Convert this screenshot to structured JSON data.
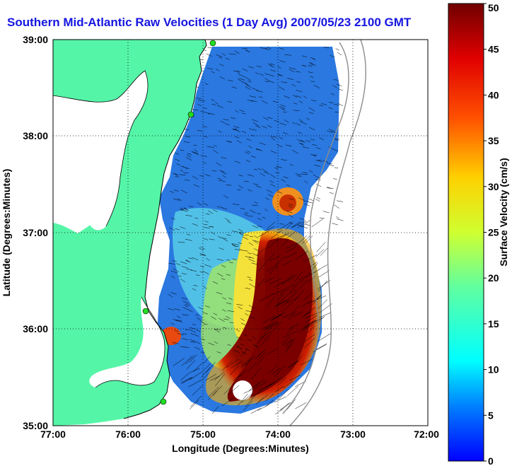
{
  "title": "Southern Mid-Atlantic Raw Velocities (1 Day Avg) 2007/05/23 2100 GMT",
  "xlabel": "Longitude (Degrees:Minutes)",
  "ylabel": "Latitude (Degrees:Minutes)",
  "colorbar_label": "Surface Velocity (cm/s)",
  "x_ticks": [
    "77:00",
    "76:00",
    "75:00",
    "74:00",
    "73:00",
    "72:00"
  ],
  "y_ticks": [
    "39:00",
    "38:00",
    "37:00",
    "36:00",
    "35:00"
  ],
  "colorbar_ticks": [
    "0",
    "5",
    "10",
    "15",
    "20",
    "25",
    "30",
    "35",
    "40",
    "45",
    "50"
  ],
  "colors": {
    "title": "#1515e0",
    "land": "#55f5a8",
    "low_velocity": "#1e6ee8",
    "high_velocity": "#7a0000",
    "coastline": "#000000",
    "bathymetry": "#8c8c8c",
    "station_marker": "#22dd22"
  },
  "chart_data": {
    "type": "heatmap",
    "title": "Southern Mid-Atlantic Raw Velocities (1 Day Avg) 2007/05/23 2100 GMT",
    "xlabel": "Longitude (Degrees:Minutes)",
    "ylabel": "Latitude (Degrees:Minutes)",
    "xlim": [
      -77,
      -72
    ],
    "ylim": [
      35,
      39
    ],
    "colorbar": {
      "label": "Surface Velocity (cm/s)",
      "range": [
        0,
        50
      ]
    },
    "grid": "dotted",
    "station_markers": [
      {
        "lon": -74.9,
        "lat": 38.95
      },
      {
        "lon": -75.1,
        "lat": 38.2
      },
      {
        "lon": -75.7,
        "lat": 36.2
      },
      {
        "lon": -75.5,
        "lat": 35.25
      }
    ]
  }
}
